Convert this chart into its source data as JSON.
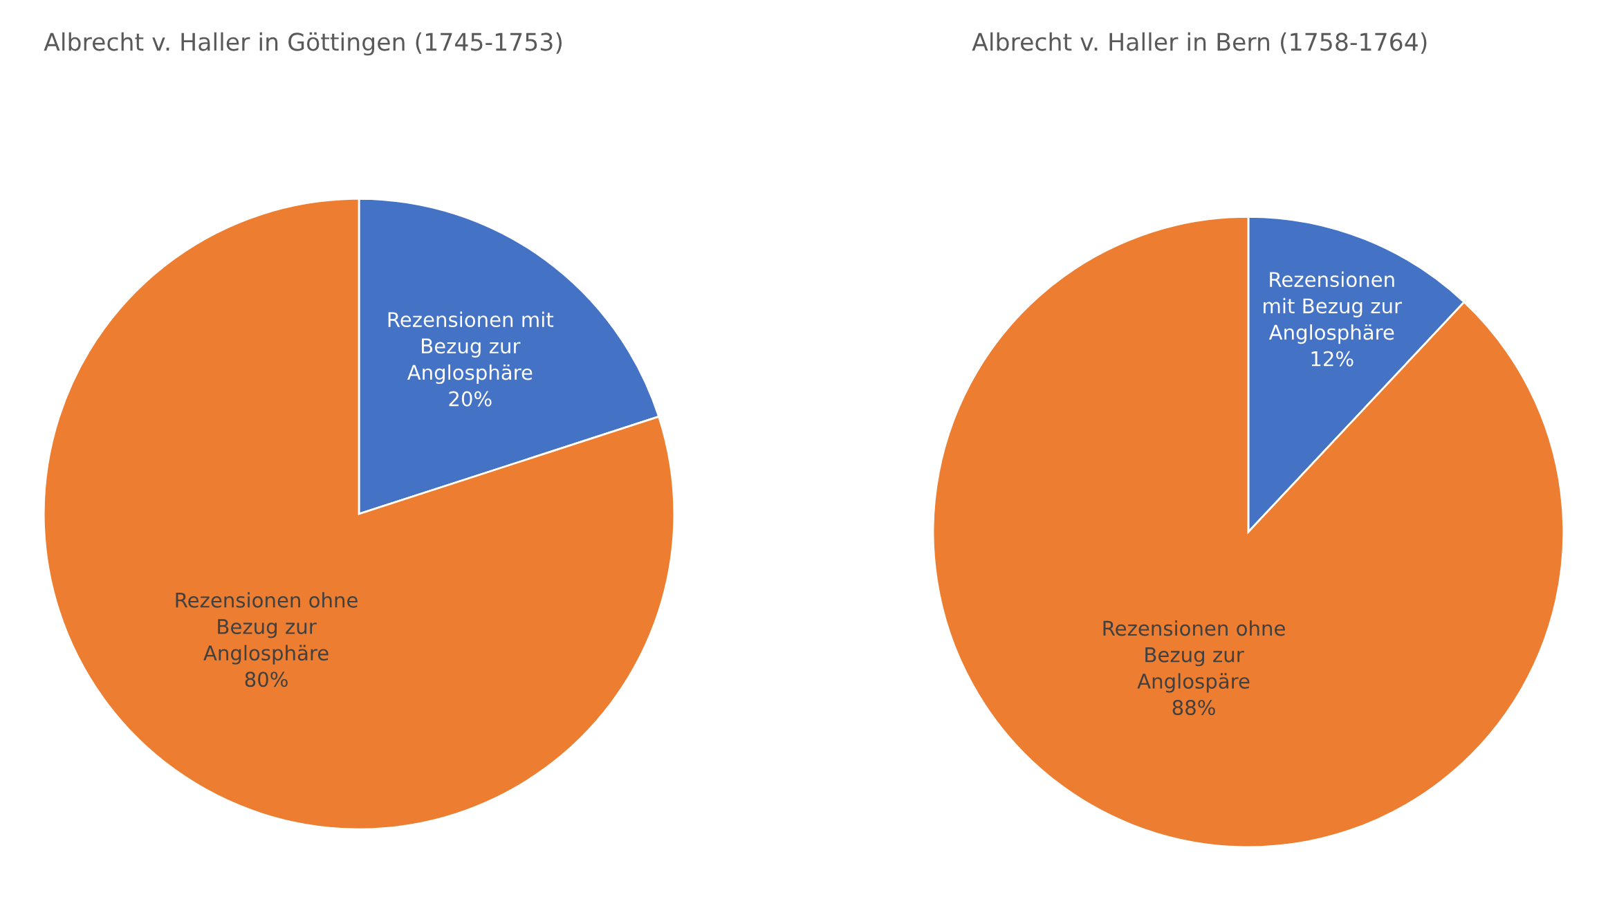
{
  "chart_data": [
    {
      "type": "pie",
      "title": "Albrecht v. Haller in Göttingen (1745-1753)",
      "categories": [
        "Rezensionen mit\nBezug zur\nAnglosphäre",
        "Rezensionen ohne\nBezug zur\nAnglosphäre"
      ],
      "values": [
        20,
        80
      ],
      "value_labels": [
        "20%",
        "80%"
      ],
      "colors": [
        "#4472c4",
        "#ed7d31"
      ],
      "legend": false
    },
    {
      "type": "pie",
      "title": "Albrecht v. Haller in Bern (1758-1764)",
      "categories": [
        "Rezensionen\nmit Bezug zur\nAnglosphäre",
        "Rezensionen ohne\nBezug zur\nAnglospäre"
      ],
      "values": [
        12,
        88
      ],
      "value_labels": [
        "12%",
        "88%"
      ],
      "colors": [
        "#4472c4",
        "#ed7d31"
      ],
      "legend": false
    }
  ]
}
